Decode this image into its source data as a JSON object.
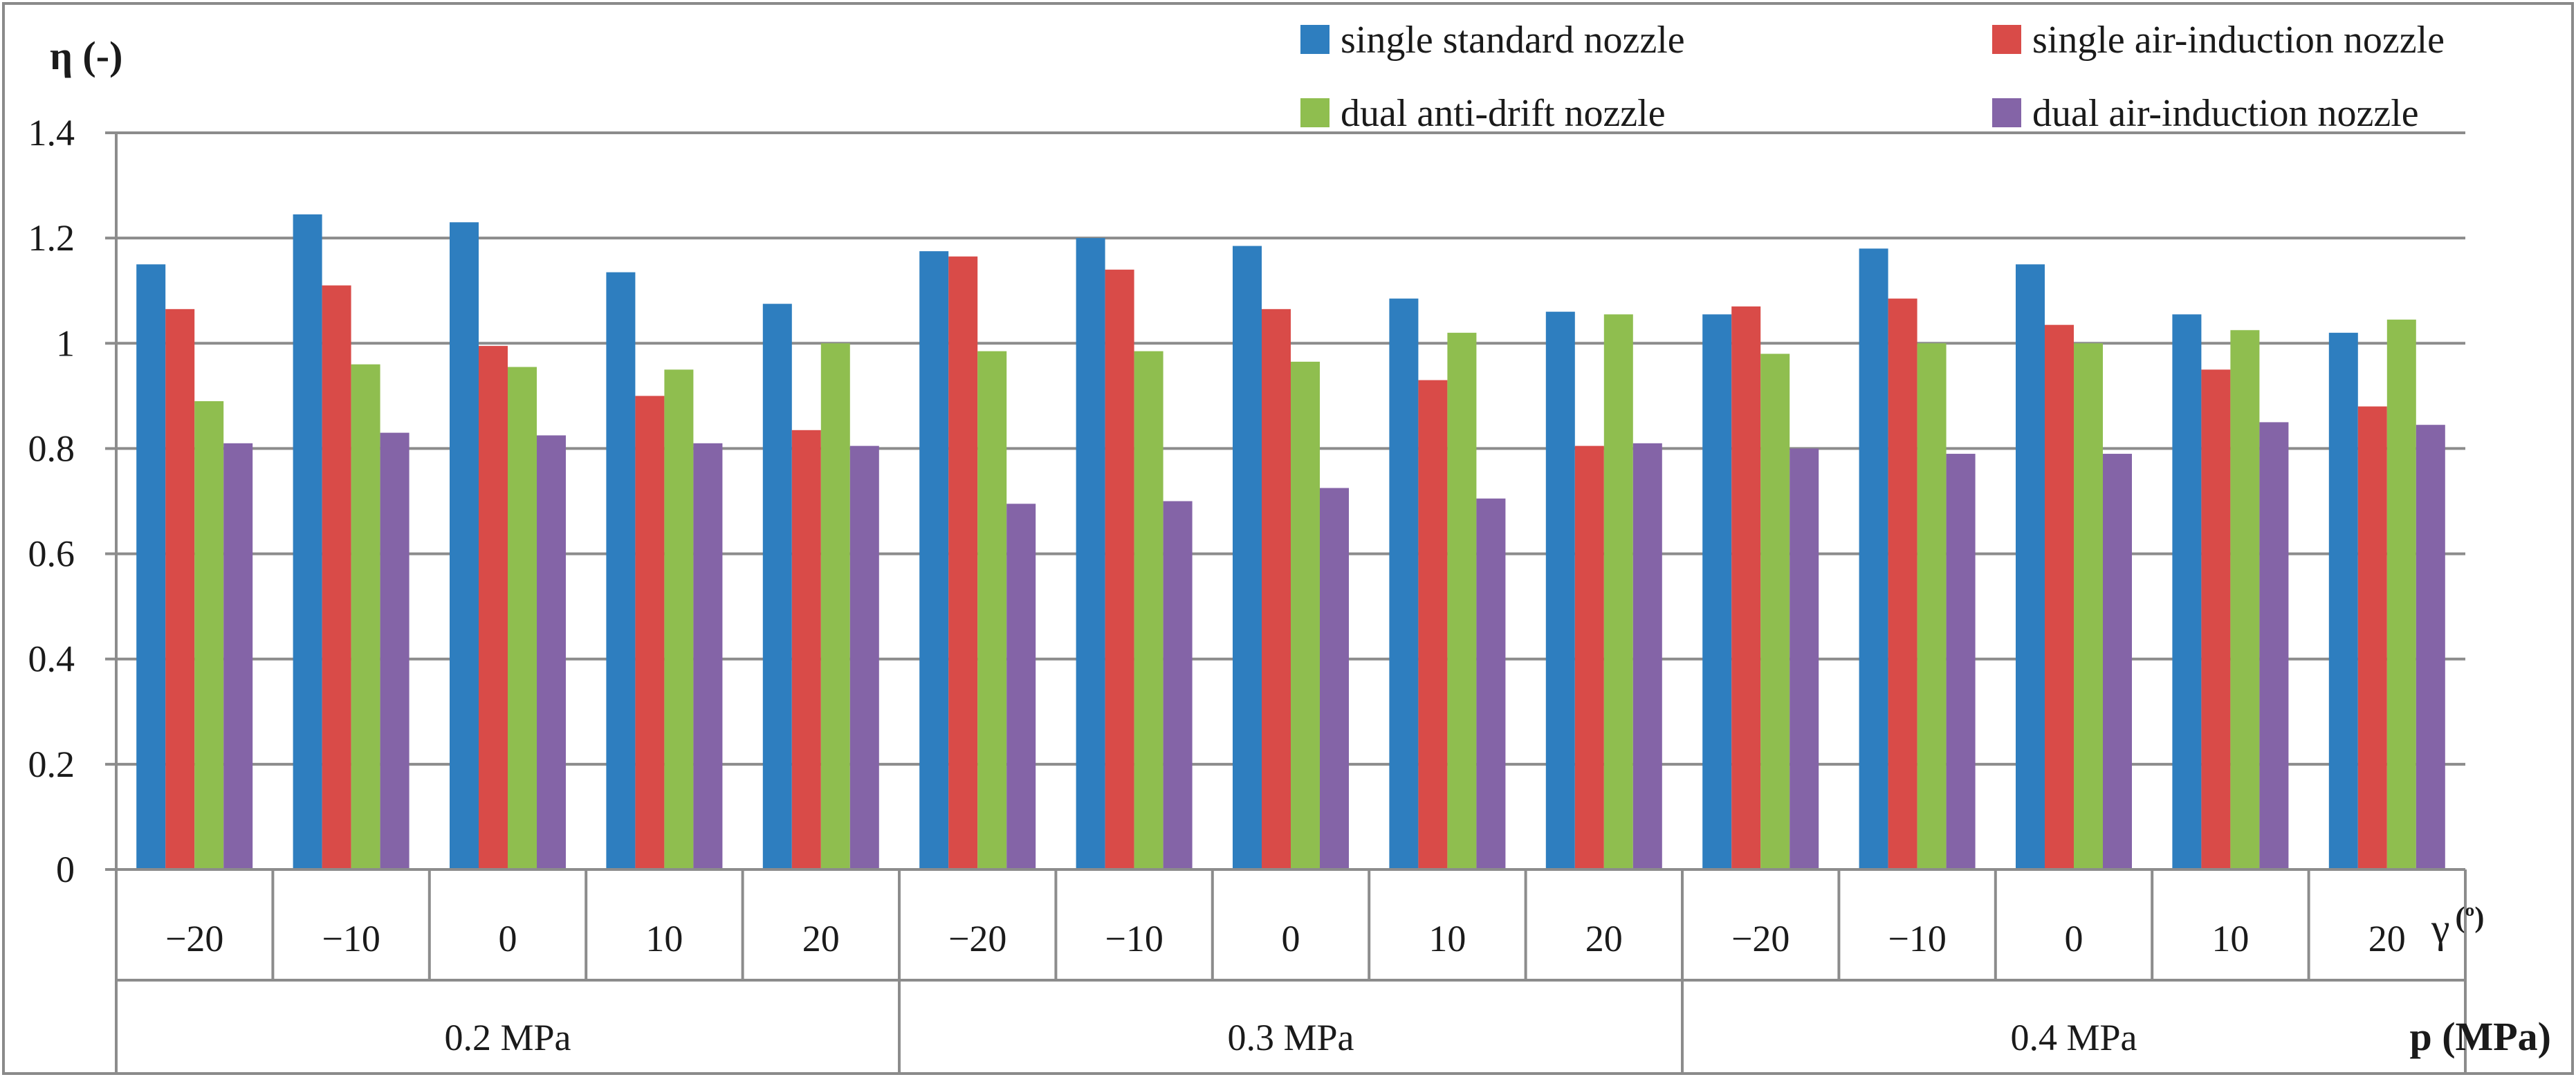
{
  "chart_data": {
    "type": "bar",
    "title": "",
    "ylabel": "η (-)",
    "xlabel_inner": "γ (º)",
    "xlabel_outer": "p (MPa)",
    "ylim": [
      0,
      1.4
    ],
    "yticks": [
      "0",
      "0.2",
      "0.4",
      "0.6",
      "0.8",
      "1",
      "1.2",
      "1.4"
    ],
    "yticks_values": [
      0,
      0.2,
      0.4,
      0.6,
      0.8,
      1.0,
      1.2,
      1.4
    ],
    "grid": true,
    "legend_position": "top-right",
    "groups": [
      {
        "label": "0.2 MPa",
        "categories": [
          "−20",
          "−10",
          "0",
          "10",
          "20"
        ]
      },
      {
        "label": "0.3 MPa",
        "categories": [
          "−20",
          "−10",
          "0",
          "10",
          "20"
        ]
      },
      {
        "label": "0.4 MPa",
        "categories": [
          "−20",
          "−10",
          "0",
          "10",
          "20"
        ]
      }
    ],
    "series": [
      {
        "name": "single standard nozzle",
        "color": "#2E7EBF",
        "values": [
          1.15,
          1.245,
          1.23,
          1.135,
          1.075,
          1.175,
          1.2,
          1.185,
          1.085,
          1.06,
          1.055,
          1.18,
          1.15,
          1.055,
          1.02
        ]
      },
      {
        "name": "single air-induction nozzle",
        "color": "#D94B48",
        "values": [
          1.065,
          1.11,
          0.995,
          0.9,
          0.835,
          1.165,
          1.14,
          1.065,
          0.93,
          0.805,
          1.07,
          1.085,
          1.035,
          0.95,
          0.88
        ]
      },
      {
        "name": "dual anti-drift nozzle",
        "color": "#8FBE4F",
        "values": [
          0.89,
          0.96,
          0.955,
          0.95,
          1.0,
          0.985,
          0.985,
          0.965,
          1.02,
          1.055,
          0.98,
          1.0,
          1.0,
          1.025,
          1.045
        ]
      },
      {
        "name": "dual air-induction nozzle",
        "color": "#8464A7",
        "values": [
          0.81,
          0.83,
          0.825,
          0.81,
          0.805,
          0.695,
          0.7,
          0.725,
          0.705,
          0.81,
          0.8,
          0.79,
          0.79,
          0.85,
          0.845
        ]
      }
    ]
  }
}
